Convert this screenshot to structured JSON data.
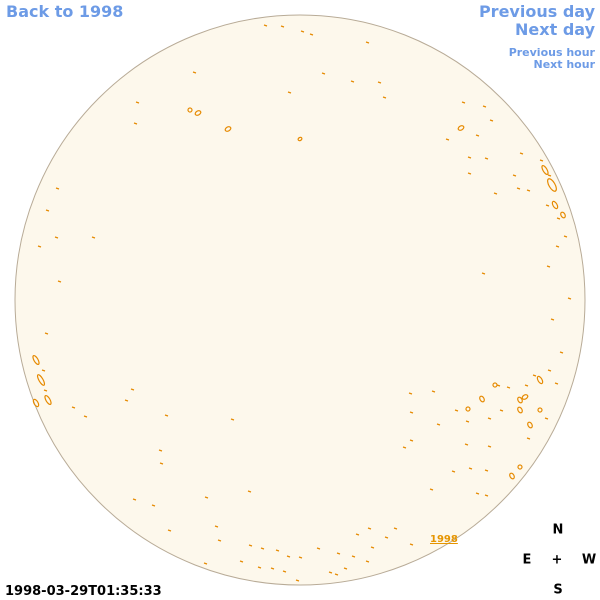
{
  "nav": {
    "back": "Back to 1998",
    "previous_day": "Previous day",
    "next_day": "Next day",
    "previous_hour": "Previous hour",
    "next_hour": "Next hour"
  },
  "map": {
    "label": "1998"
  },
  "compass": {
    "north": "N",
    "east": "E",
    "center": "+",
    "west": "W",
    "south": "S"
  },
  "timestamp": "1998-03-29T01:35:33"
}
